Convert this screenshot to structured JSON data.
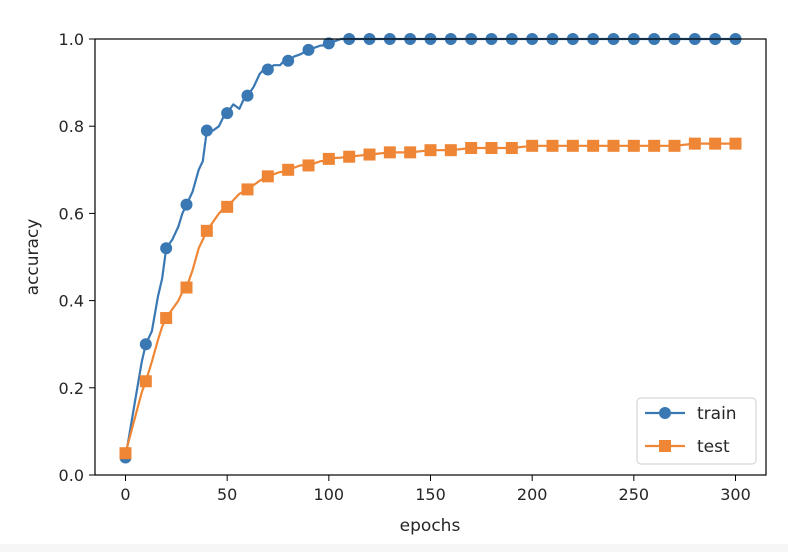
{
  "chart_data": {
    "type": "line",
    "xlabel": "epochs",
    "ylabel": "accuracy",
    "xlim": [
      -15,
      315
    ],
    "ylim": [
      0.0,
      1.0
    ],
    "xticks": [
      0,
      50,
      100,
      150,
      200,
      250,
      300
    ],
    "xtick_labels": [
      "0",
      "50",
      "100",
      "150",
      "200",
      "250",
      "300"
    ],
    "yticks": [
      0.0,
      0.2,
      0.4,
      0.6,
      0.8,
      1.0
    ],
    "ytick_labels": [
      "0.0",
      "0.2",
      "0.4",
      "0.6",
      "0.8",
      "1.0"
    ],
    "grid": false,
    "legend_position": "lower-right",
    "series": [
      {
        "name": "train",
        "color": "#3a78b4",
        "marker": "circle",
        "x": [
          0,
          4,
          8,
          10,
          13,
          16,
          18,
          20,
          23,
          26,
          28,
          30,
          33,
          36,
          38,
          40,
          43,
          46,
          48,
          50,
          53,
          56,
          58,
          60,
          63,
          66,
          68,
          70,
          73,
          76,
          78,
          80,
          83,
          86,
          88,
          90,
          93,
          96,
          98,
          100,
          103,
          106,
          108,
          110,
          120,
          130,
          140,
          150,
          160,
          170,
          180,
          190,
          200,
          210,
          220,
          230,
          240,
          250,
          260,
          270,
          280,
          290,
          300
        ],
        "y": [
          0.04,
          0.15,
          0.26,
          0.3,
          0.33,
          0.41,
          0.45,
          0.52,
          0.54,
          0.57,
          0.6,
          0.62,
          0.65,
          0.7,
          0.72,
          0.79,
          0.79,
          0.8,
          0.82,
          0.83,
          0.85,
          0.84,
          0.86,
          0.87,
          0.89,
          0.92,
          0.93,
          0.93,
          0.94,
          0.94,
          0.95,
          0.95,
          0.96,
          0.965,
          0.97,
          0.975,
          0.98,
          0.985,
          0.985,
          0.99,
          0.995,
          1.0,
          1.0,
          1.0,
          1.0,
          1.0,
          1.0,
          1.0,
          1.0,
          1.0,
          1.0,
          1.0,
          1.0,
          1.0,
          1.0,
          1.0,
          1.0,
          1.0,
          1.0,
          1.0,
          1.0,
          1.0,
          1.0
        ],
        "marker_x": [
          0,
          10,
          20,
          30,
          40,
          50,
          60,
          70,
          80,
          90,
          100,
          110,
          120,
          130,
          140,
          150,
          160,
          170,
          180,
          190,
          200,
          210,
          220,
          230,
          240,
          250,
          260,
          270,
          280,
          290,
          300
        ],
        "marker_y": [
          0.04,
          0.3,
          0.52,
          0.62,
          0.79,
          0.83,
          0.87,
          0.93,
          0.95,
          0.975,
          0.99,
          1.0,
          1.0,
          1.0,
          1.0,
          1.0,
          1.0,
          1.0,
          1.0,
          1.0,
          1.0,
          1.0,
          1.0,
          1.0,
          1.0,
          1.0,
          1.0,
          1.0,
          1.0,
          1.0,
          1.0
        ]
      },
      {
        "name": "test",
        "color": "#ef8636",
        "marker": "square",
        "x": [
          0,
          4,
          8,
          10,
          13,
          16,
          18,
          20,
          23,
          26,
          28,
          30,
          33,
          36,
          38,
          40,
          43,
          46,
          48,
          50,
          53,
          56,
          58,
          60,
          63,
          66,
          68,
          70,
          73,
          76,
          78,
          80,
          83,
          86,
          88,
          90,
          93,
          96,
          98,
          100,
          103,
          106,
          108,
          110,
          120,
          130,
          140,
          150,
          160,
          170,
          180,
          190,
          200,
          210,
          220,
          230,
          240,
          250,
          260,
          270,
          280,
          290,
          300
        ],
        "y": [
          0.05,
          0.12,
          0.19,
          0.215,
          0.26,
          0.31,
          0.34,
          0.36,
          0.38,
          0.4,
          0.42,
          0.43,
          0.47,
          0.52,
          0.54,
          0.56,
          0.58,
          0.6,
          0.61,
          0.615,
          0.63,
          0.645,
          0.65,
          0.655,
          0.665,
          0.675,
          0.68,
          0.685,
          0.69,
          0.695,
          0.695,
          0.7,
          0.705,
          0.71,
          0.71,
          0.71,
          0.715,
          0.72,
          0.72,
          0.725,
          0.727,
          0.728,
          0.729,
          0.73,
          0.735,
          0.74,
          0.74,
          0.745,
          0.745,
          0.75,
          0.75,
          0.75,
          0.755,
          0.755,
          0.755,
          0.755,
          0.755,
          0.755,
          0.755,
          0.755,
          0.76,
          0.76,
          0.76
        ],
        "marker_x": [
          0,
          10,
          20,
          30,
          40,
          50,
          60,
          70,
          80,
          90,
          100,
          110,
          120,
          130,
          140,
          150,
          160,
          170,
          180,
          190,
          200,
          210,
          220,
          230,
          240,
          250,
          260,
          270,
          280,
          290,
          300
        ],
        "marker_y": [
          0.05,
          0.215,
          0.36,
          0.43,
          0.56,
          0.615,
          0.655,
          0.685,
          0.7,
          0.71,
          0.725,
          0.73,
          0.735,
          0.74,
          0.74,
          0.745,
          0.745,
          0.75,
          0.75,
          0.75,
          0.755,
          0.755,
          0.755,
          0.755,
          0.755,
          0.755,
          0.755,
          0.755,
          0.76,
          0.76,
          0.76
        ]
      }
    ]
  }
}
